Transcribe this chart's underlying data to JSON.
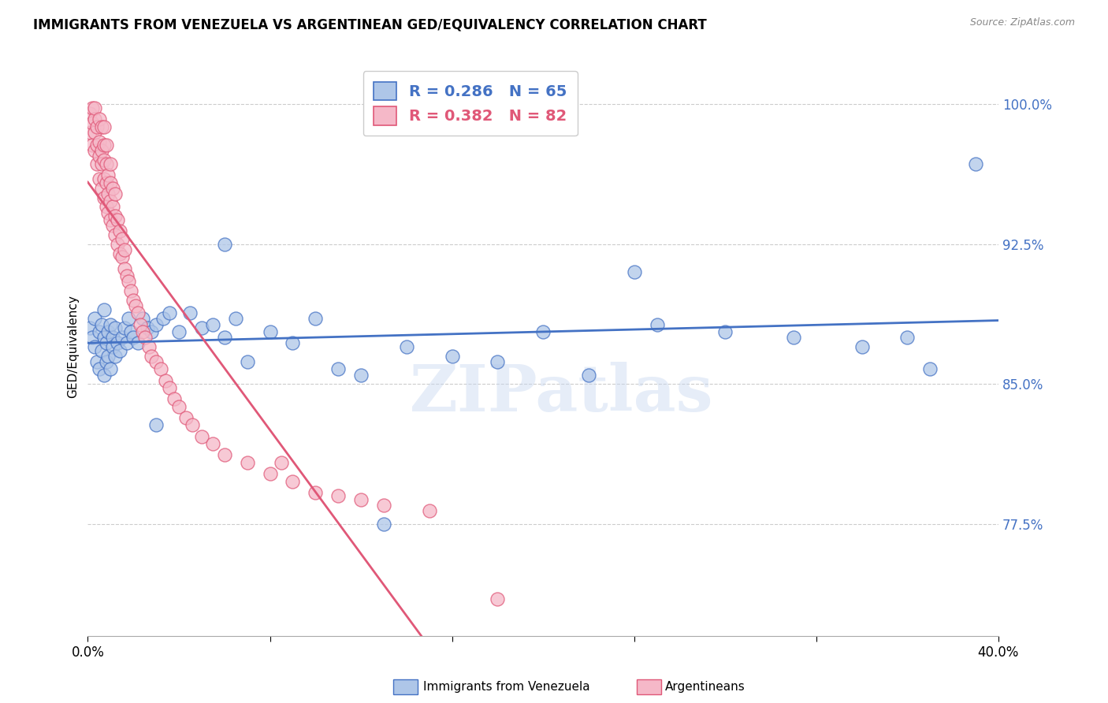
{
  "title": "IMMIGRANTS FROM VENEZUELA VS ARGENTINEAN GED/EQUIVALENCY CORRELATION CHART",
  "source": "Source: ZipAtlas.com",
  "ylabel": "GED/Equivalency",
  "yticks": [
    "77.5%",
    "85.0%",
    "92.5%",
    "100.0%"
  ],
  "ytick_vals": [
    0.775,
    0.85,
    0.925,
    1.0
  ],
  "xlim": [
    0.0,
    0.4
  ],
  "ylim": [
    0.715,
    1.025
  ],
  "legend_blue_r": "0.286",
  "legend_blue_n": "65",
  "legend_pink_r": "0.382",
  "legend_pink_n": "82",
  "legend_label_blue": "Immigrants from Venezuela",
  "legend_label_pink": "Argentineans",
  "blue_color": "#aec6e8",
  "pink_color": "#f5b8c8",
  "blue_line_color": "#4472c4",
  "pink_line_color": "#e05878",
  "watermark": "ZIPatlas",
  "blue_scatter_x": [
    0.001,
    0.002,
    0.003,
    0.003,
    0.004,
    0.005,
    0.005,
    0.006,
    0.006,
    0.007,
    0.007,
    0.007,
    0.008,
    0.008,
    0.009,
    0.009,
    0.01,
    0.01,
    0.011,
    0.011,
    0.012,
    0.012,
    0.013,
    0.014,
    0.015,
    0.016,
    0.017,
    0.018,
    0.019,
    0.02,
    0.022,
    0.024,
    0.026,
    0.028,
    0.03,
    0.033,
    0.036,
    0.04,
    0.045,
    0.05,
    0.055,
    0.06,
    0.065,
    0.07,
    0.08,
    0.09,
    0.1,
    0.11,
    0.12,
    0.14,
    0.16,
    0.18,
    0.2,
    0.22,
    0.25,
    0.28,
    0.31,
    0.34,
    0.37,
    0.39,
    0.06,
    0.13,
    0.24,
    0.36,
    0.03
  ],
  "blue_scatter_y": [
    0.88,
    0.875,
    0.87,
    0.885,
    0.862,
    0.878,
    0.858,
    0.882,
    0.868,
    0.875,
    0.855,
    0.89,
    0.872,
    0.862,
    0.878,
    0.865,
    0.882,
    0.858,
    0.875,
    0.87,
    0.865,
    0.88,
    0.872,
    0.868,
    0.875,
    0.88,
    0.872,
    0.885,
    0.878,
    0.875,
    0.872,
    0.885,
    0.88,
    0.878,
    0.882,
    0.885,
    0.888,
    0.878,
    0.888,
    0.88,
    0.882,
    0.875,
    0.885,
    0.862,
    0.878,
    0.872,
    0.885,
    0.858,
    0.855,
    0.87,
    0.865,
    0.862,
    0.878,
    0.855,
    0.882,
    0.878,
    0.875,
    0.87,
    0.858,
    0.968,
    0.925,
    0.775,
    0.91,
    0.875,
    0.828
  ],
  "pink_scatter_x": [
    0.001,
    0.001,
    0.002,
    0.002,
    0.002,
    0.003,
    0.003,
    0.003,
    0.003,
    0.004,
    0.004,
    0.004,
    0.005,
    0.005,
    0.005,
    0.005,
    0.006,
    0.006,
    0.006,
    0.006,
    0.007,
    0.007,
    0.007,
    0.007,
    0.007,
    0.008,
    0.008,
    0.008,
    0.008,
    0.009,
    0.009,
    0.009,
    0.01,
    0.01,
    0.01,
    0.01,
    0.011,
    0.011,
    0.011,
    0.012,
    0.012,
    0.012,
    0.013,
    0.013,
    0.014,
    0.014,
    0.015,
    0.015,
    0.016,
    0.016,
    0.017,
    0.018,
    0.019,
    0.02,
    0.021,
    0.022,
    0.023,
    0.024,
    0.025,
    0.027,
    0.028,
    0.03,
    0.032,
    0.034,
    0.036,
    0.038,
    0.04,
    0.043,
    0.046,
    0.05,
    0.055,
    0.06,
    0.07,
    0.08,
    0.09,
    0.1,
    0.11,
    0.12,
    0.13,
    0.15,
    0.18,
    0.085
  ],
  "pink_scatter_y": [
    0.985,
    0.995,
    0.978,
    0.99,
    0.998,
    0.975,
    0.985,
    0.992,
    0.998,
    0.968,
    0.978,
    0.988,
    0.96,
    0.972,
    0.98,
    0.992,
    0.955,
    0.968,
    0.975,
    0.988,
    0.95,
    0.96,
    0.97,
    0.978,
    0.988,
    0.945,
    0.958,
    0.968,
    0.978,
    0.942,
    0.952,
    0.962,
    0.938,
    0.948,
    0.958,
    0.968,
    0.935,
    0.945,
    0.955,
    0.93,
    0.94,
    0.952,
    0.925,
    0.938,
    0.92,
    0.932,
    0.918,
    0.928,
    0.912,
    0.922,
    0.908,
    0.905,
    0.9,
    0.895,
    0.892,
    0.888,
    0.882,
    0.878,
    0.875,
    0.87,
    0.865,
    0.862,
    0.858,
    0.852,
    0.848,
    0.842,
    0.838,
    0.832,
    0.828,
    0.822,
    0.818,
    0.812,
    0.808,
    0.802,
    0.798,
    0.792,
    0.79,
    0.788,
    0.785,
    0.782,
    0.735,
    0.808
  ]
}
